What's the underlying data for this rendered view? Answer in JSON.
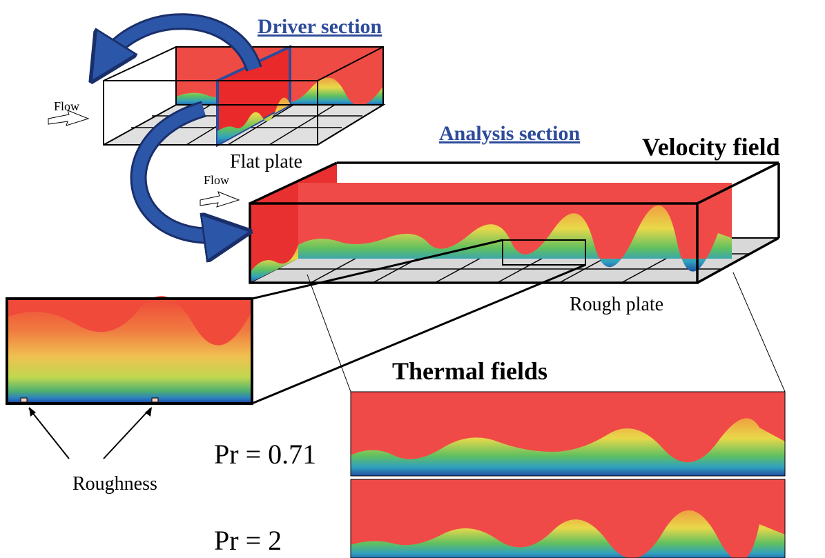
{
  "labels": {
    "driver_section": "Driver section",
    "analysis_section": "Analysis section",
    "velocity_field": "Velocity field",
    "flow_driver": "Flow",
    "flow_analysis": "Flow",
    "flat_plate": "Flat plate",
    "rough_plate": "Rough plate",
    "thermal_fields": "Thermal fields",
    "roughness": "Roughness",
    "prandtl": [
      "Pr = 0.71",
      "Pr = 2"
    ]
  }
}
